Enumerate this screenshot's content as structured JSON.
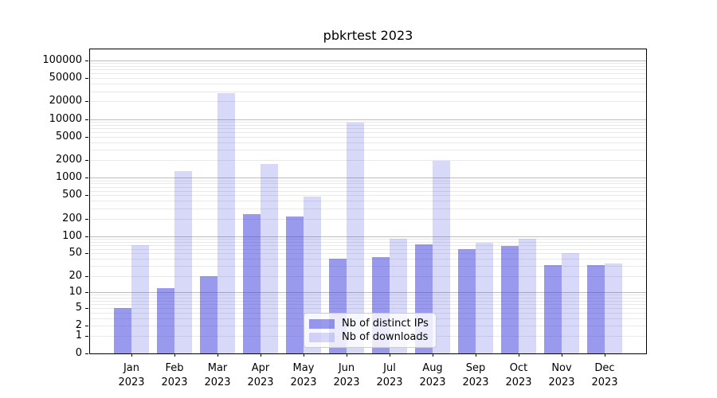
{
  "title": "pbkrtest 2023",
  "chart_data": {
    "type": "bar",
    "title": "pbkrtest 2023",
    "scale": "log1p (symlog-like, y = log10(1+v))",
    "grid": "horizontal minor+major gridlines",
    "legend_position": "lower center inside plot",
    "categories": [
      "Jan",
      "Feb",
      "Mar",
      "Apr",
      "May",
      "Jun",
      "Jul",
      "Aug",
      "Sep",
      "Oct",
      "Nov",
      "Dec"
    ],
    "year_label": "2023",
    "series": [
      {
        "name": "Nb of distinct IPs",
        "color": "rgba(60,60,220,0.52)",
        "values": [
          5,
          12,
          20,
          235,
          215,
          41,
          43,
          72,
          60,
          68,
          31,
          31
        ]
      },
      {
        "name": "Nb of downloads",
        "color": "rgba(60,60,220,0.20)",
        "values": [
          70,
          1300,
          28000,
          1700,
          475,
          8600,
          90,
          1950,
          77,
          90,
          51,
          33
        ]
      }
    ],
    "yticks": [
      100000,
      50000,
      20000,
      10000,
      5000,
      2000,
      1000,
      500,
      200,
      100,
      50,
      20,
      10,
      5,
      2,
      1,
      0
    ],
    "ylim": [
      0,
      157000
    ],
    "xlabel": "",
    "ylabel": ""
  },
  "colors": {
    "background": "#ffffff",
    "axis": "#000000",
    "grid_minor": "#e9e9e9",
    "grid_major": "#bdbdbd",
    "text": "#000000",
    "legend_bg": "rgba(255,255,255,0.8)",
    "legend_border": "#cccccc"
  }
}
